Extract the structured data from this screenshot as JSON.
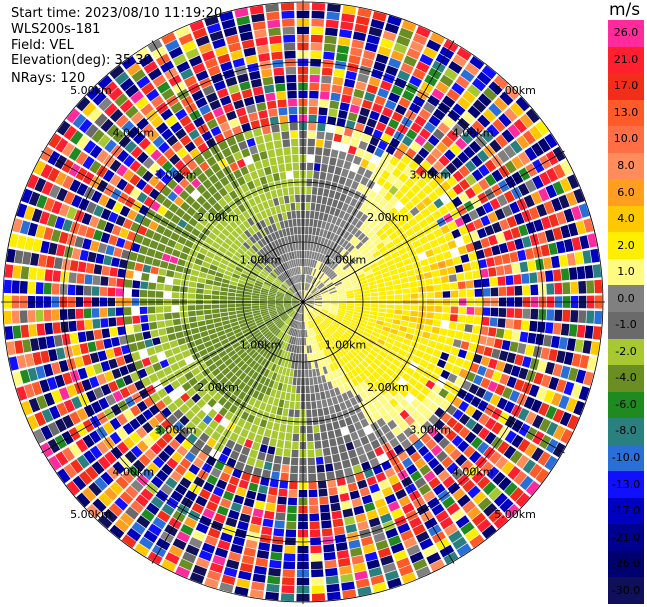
{
  "header": {
    "start_time": "Start time: 2023/08/10 11:19:20",
    "instrument": "WLS200s-181",
    "field": "Field: VEL",
    "elevation": "Elevation(deg): 35.30",
    "nrays": "NRays: 120"
  },
  "colorbar": {
    "unit": "m/s",
    "levels": [
      {
        "label": "26.0",
        "color": "#ff2b9c",
        "text_color": "#000000"
      },
      {
        "label": "21.0",
        "color": "#ff1f2e",
        "text_color": "#000000"
      },
      {
        "label": "17.0",
        "color": "#f22e1a",
        "text_color": "#000000"
      },
      {
        "label": "13.0",
        "color": "#ff5a2a",
        "text_color": "#000000"
      },
      {
        "label": "10.0",
        "color": "#ff6e45",
        "text_color": "#000000"
      },
      {
        "label": "8.0",
        "color": "#ff8c5a",
        "text_color": "#000000"
      },
      {
        "label": "6.0",
        "color": "#ff9e1f",
        "text_color": "#000000"
      },
      {
        "label": "4.0",
        "color": "#ffc800",
        "text_color": "#000000"
      },
      {
        "label": "2.0",
        "color": "#ffee00",
        "text_color": "#000000"
      },
      {
        "label": "1.0",
        "color": "#fffa80",
        "text_color": "#000000"
      },
      {
        "label": "0.0",
        "color": "#808080",
        "text_color": "#000000"
      },
      {
        "label": "-1.0",
        "color": "#6a6a6a",
        "text_color": "#000000"
      },
      {
        "label": "-2.0",
        "color": "#a8c832",
        "text_color": "#000000"
      },
      {
        "label": "-4.0",
        "color": "#6b8e23",
        "text_color": "#000000"
      },
      {
        "label": "-6.0",
        "color": "#1f8a1f",
        "text_color": "#000000"
      },
      {
        "label": "-8.0",
        "color": "#2a7f7f",
        "text_color": "#000000"
      },
      {
        "label": "-10.0",
        "color": "#2a6fd8",
        "text_color": "#000000"
      },
      {
        "label": "-13.0",
        "color": "#1010ff",
        "text_color": "#000000"
      },
      {
        "label": "-17.0",
        "color": "#0000c0",
        "text_color": "#000000"
      },
      {
        "label": "-21.0",
        "color": "#000090",
        "text_color": "#000000"
      },
      {
        "label": "-26.0",
        "color": "#000070",
        "text_color": "#000000"
      },
      {
        "label": "-30.0",
        "color": "#10105a",
        "text_color": "#000000"
      }
    ]
  },
  "chart_data": {
    "type": "heatmap",
    "projection": "polar PPI",
    "field": "VEL",
    "unit": "m/s",
    "n_rays": 120,
    "elevation_deg": 35.3,
    "range_rings_km": [
      1.0,
      2.0,
      3.0,
      4.0,
      5.0
    ],
    "range_ring_labels": [
      "1.00km",
      "2.00km",
      "3.00km",
      "4.00km",
      "5.00km"
    ],
    "azimuth_spokes_deg": [
      0,
      30,
      60,
      90,
      120,
      150,
      180,
      210,
      240,
      270,
      300,
      330
    ],
    "approx_velocity_pattern": {
      "inner_east_sector_ms": 3.0,
      "inner_west_sector_ms": -3.0,
      "transition_zone_ms": 0.0,
      "outer_region": "noise (mixed colors across full scale)"
    },
    "grid": true
  }
}
